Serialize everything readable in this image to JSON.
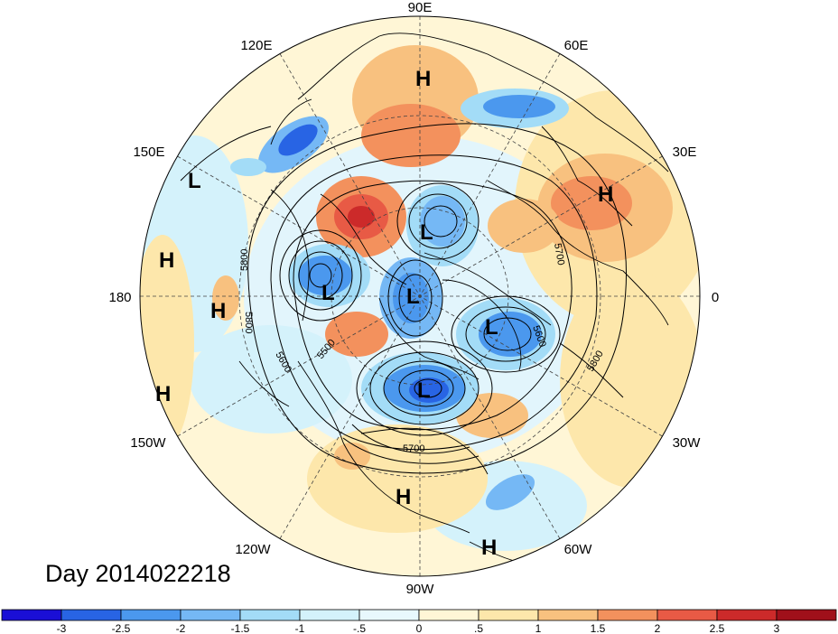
{
  "title": "Day 2014022218",
  "longitude_labels": {
    "e90": "90E",
    "e60": "60E",
    "e30": "30E",
    "zero": "0",
    "w30": "30W",
    "w60": "60W",
    "w90": "90W",
    "w120": "120W",
    "w150": "150W",
    "dateline": "180",
    "e150": "150E",
    "e120": "120E"
  },
  "pressure_centers": [
    {
      "type": "H",
      "where": "Siberia"
    },
    {
      "type": "H",
      "where": "Europe"
    },
    {
      "type": "L",
      "where": "North Pacific"
    },
    {
      "type": "H",
      "where": "Central Pacific"
    },
    {
      "type": "H",
      "where": "Eastern Pacific"
    },
    {
      "type": "H",
      "where": "South Pacific edge"
    },
    {
      "type": "L",
      "where": "Bering Sea"
    },
    {
      "type": "L",
      "where": "East Siberian Sea"
    },
    {
      "type": "L",
      "where": "Canadian Arctic"
    },
    {
      "type": "L",
      "where": "Greenland"
    },
    {
      "type": "L",
      "where": "Hudson Bay"
    },
    {
      "type": "H",
      "where": "Gulf of Mexico"
    },
    {
      "type": "H",
      "where": "Caribbean"
    }
  ],
  "contour_labels": [
    "5800",
    "5800",
    "5600",
    "5500",
    "5700",
    "5600",
    "5700",
    "5800"
  ],
  "colorbar": {
    "ticks": [
      "-3",
      "-2.5",
      "-2",
      "-1.5",
      "-1",
      "-.5",
      "0",
      ".5",
      "1",
      "1.5",
      "2",
      "2.5",
      "3"
    ],
    "colors": [
      "#1a0fd6",
      "#2864e4",
      "#4b98ee",
      "#75b8f5",
      "#a3dcf7",
      "#d4f2fb",
      "#e8f8fd",
      "#fff6d6",
      "#fde7ab",
      "#f8c17f",
      "#f3915d",
      "#e85a45",
      "#cc2a2a",
      "#a0101a"
    ]
  },
  "anomaly_colors": {
    "neg3": "#1a0fd6",
    "neg2": "#4b98ee",
    "neg1": "#a3dcf7",
    "neg05": "#d4f2fb",
    "pos05": "#fff6d6",
    "pos1": "#fde7ab",
    "pos15": "#f8c17f",
    "pos2": "#f3915d",
    "pos25": "#e85a45",
    "pos3": "#cc2a2a"
  }
}
